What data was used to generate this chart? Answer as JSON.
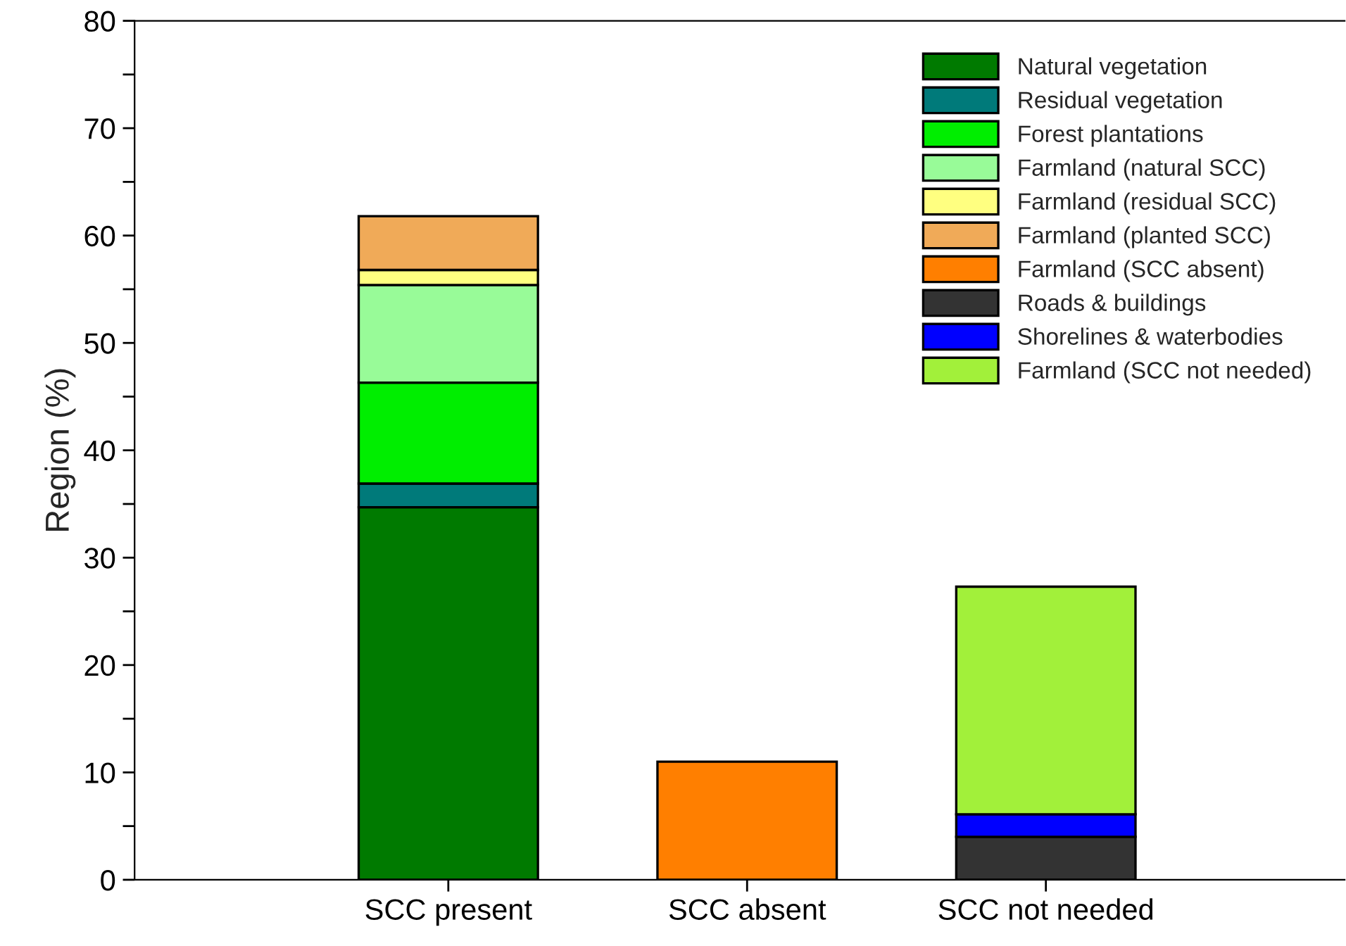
{
  "chart_data": {
    "type": "bar",
    "stacked": true,
    "ylabel": "Region (%)",
    "categories": [
      "SCC present",
      "SCC absent",
      "SCC not needed"
    ],
    "series": [
      {
        "name": "Natural vegetation",
        "color": "#007a00",
        "values": [
          34.7,
          null,
          null
        ]
      },
      {
        "name": "Residual vegetation",
        "color": "#007a7a",
        "values": [
          2.2,
          null,
          null
        ]
      },
      {
        "name": "Forest plantations",
        "color": "#00ee00",
        "values": [
          9.4,
          null,
          null
        ]
      },
      {
        "name": "Farmland (natural SCC)",
        "color": "#98fb98",
        "values": [
          9.1,
          null,
          null
        ]
      },
      {
        "name": "Farmland (residual SCC)",
        "color": "#ffff80",
        "values": [
          1.4,
          null,
          null
        ]
      },
      {
        "name": "Farmland (planted SCC)",
        "color": "#f0aa58",
        "values": [
          5.0,
          null,
          null
        ]
      },
      {
        "name": "Farmland (SCC absent)",
        "color": "#ff7f00",
        "values": [
          null,
          11.0,
          null
        ]
      },
      {
        "name": "Roads & buildings",
        "color": "#333333",
        "values": [
          null,
          null,
          4.0
        ]
      },
      {
        "name": "Shorelines & waterbodies",
        "color": "#0000ff",
        "values": [
          null,
          null,
          2.1
        ]
      },
      {
        "name": "Farmland (SCC not needed)",
        "color": "#a2f03a",
        "values": [
          null,
          null,
          21.2
        ]
      }
    ],
    "ylim": [
      0,
      80
    ],
    "yticks": [
      0,
      {
        "value": 5,
        "label": null
      },
      10,
      {
        "value": 15,
        "label": null
      },
      20,
      {
        "value": 25,
        "label": null
      },
      30,
      {
        "value": 35,
        "label": null
      },
      40,
      {
        "value": 45,
        "label": null
      },
      50,
      {
        "value": 55,
        "label": null
      },
      60,
      {
        "value": 65,
        "label": null
      },
      70,
      {
        "value": 75,
        "label": null
      },
      80
    ],
    "grid": false,
    "legend": "top right"
  }
}
